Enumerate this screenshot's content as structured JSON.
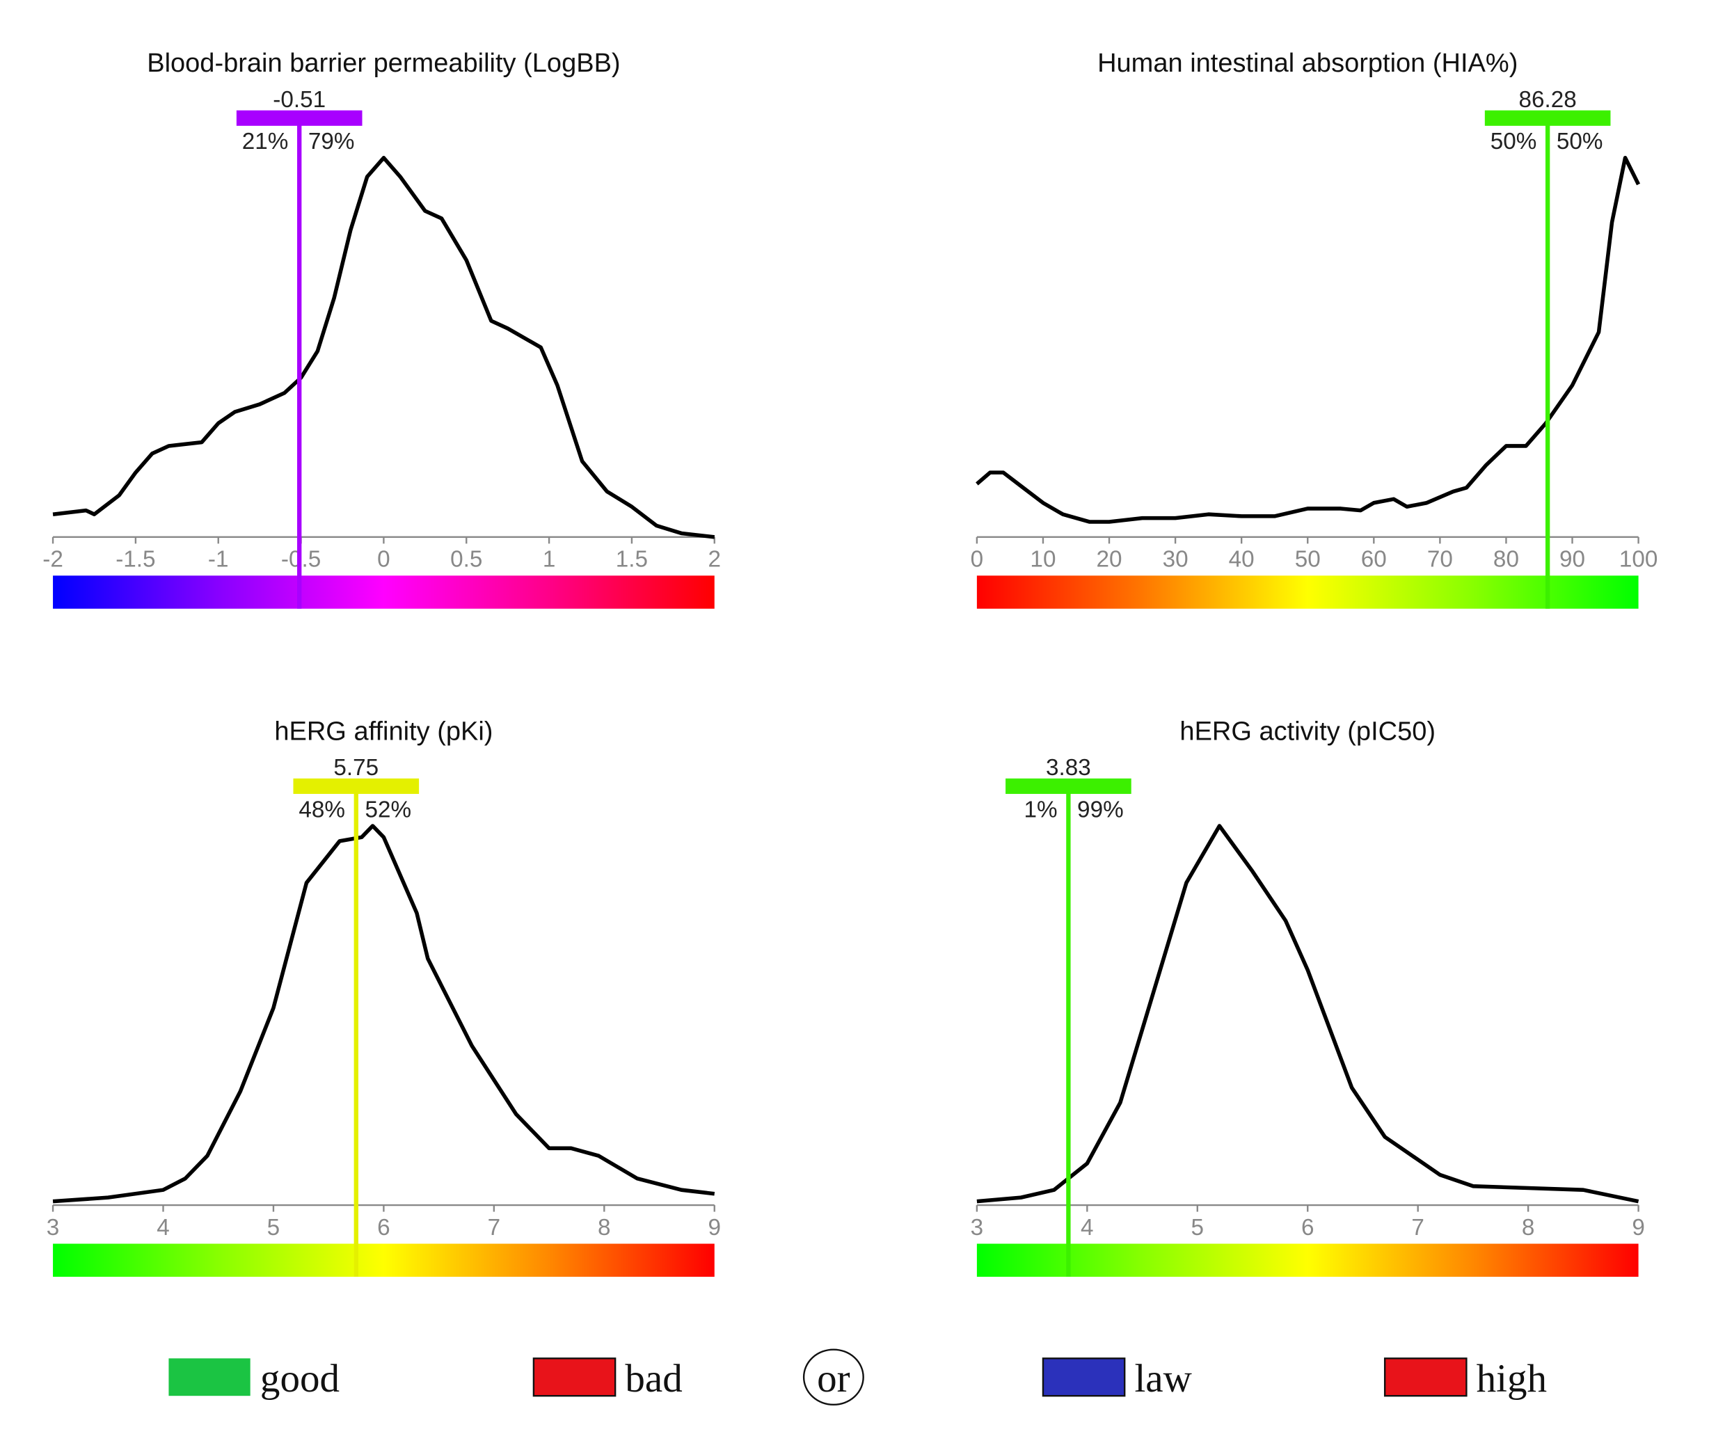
{
  "chart_data": [
    {
      "type": "area",
      "title": "Blood-brain barrier permeability (LogBB)",
      "xlim": [
        -2,
        2
      ],
      "xticks": [
        "-2",
        "-1.5",
        "-1",
        "-0.5",
        "0",
        "0.5",
        "1",
        "1.5",
        "2"
      ],
      "tick_values": [
        -2,
        -1.5,
        -1,
        -0.5,
        0,
        0.5,
        1,
        1.5,
        2
      ],
      "gradient": [
        "#0000ff",
        "#8800ff",
        "#ff00ff",
        "#ff0088",
        "#ff0000"
      ],
      "marker": {
        "value": -0.51,
        "label": "-0.51",
        "left_pct": "21%",
        "right_pct": "79%",
        "color": "#a800ff"
      },
      "density": {
        "x": [
          -2,
          -1.8,
          -1.75,
          -1.6,
          -1.5,
          -1.4,
          -1.3,
          -1.1,
          -1,
          -0.9,
          -0.75,
          -0.6,
          -0.5,
          -0.4,
          -0.3,
          -0.2,
          -0.1,
          0,
          0.1,
          0.25,
          0.35,
          0.5,
          0.65,
          0.75,
          0.95,
          1.05,
          1.2,
          1.35,
          1.5,
          1.65,
          1.8,
          2
        ],
        "y": [
          0.06,
          0.07,
          0.06,
          0.11,
          0.17,
          0.22,
          0.24,
          0.25,
          0.3,
          0.33,
          0.35,
          0.38,
          0.42,
          0.49,
          0.63,
          0.81,
          0.95,
          1,
          0.95,
          0.86,
          0.84,
          0.73,
          0.57,
          0.55,
          0.5,
          0.4,
          0.2,
          0.12,
          0.08,
          0.03,
          0.01,
          0.0
        ]
      }
    },
    {
      "type": "area",
      "title": "Human intestinal absorption (HIA%)",
      "xlim": [
        0,
        100
      ],
      "xticks": [
        "0",
        "10",
        "20",
        "30",
        "40",
        "50",
        "60",
        "70",
        "80",
        "90",
        "100"
      ],
      "tick_values": [
        0,
        10,
        20,
        30,
        40,
        50,
        60,
        70,
        80,
        90,
        100
      ],
      "gradient": [
        "#ff0000",
        "#ff7700",
        "#ffff00",
        "#88ff00",
        "#00ff00"
      ],
      "marker": {
        "value": 86.28,
        "label": "86.28",
        "left_pct": "50%",
        "right_pct": "50%",
        "color": "#3cf000"
      },
      "density": {
        "x": [
          0,
          2,
          4,
          7,
          10,
          13,
          17,
          20,
          25,
          30,
          35,
          40,
          45,
          50,
          55,
          58,
          60,
          63,
          65,
          68,
          72,
          74,
          77,
          80,
          83,
          86,
          90,
          94,
          96,
          98,
          100
        ],
        "y": [
          0.14,
          0.17,
          0.17,
          0.13,
          0.09,
          0.06,
          0.04,
          0.04,
          0.05,
          0.05,
          0.06,
          0.055,
          0.055,
          0.075,
          0.075,
          0.07,
          0.09,
          0.1,
          0.08,
          0.09,
          0.12,
          0.13,
          0.19,
          0.24,
          0.24,
          0.3,
          0.4,
          0.54,
          0.83,
          1,
          0.93
        ]
      }
    },
    {
      "type": "area",
      "title": "hERG affinity (pKi)",
      "xlim": [
        3,
        9
      ],
      "xticks": [
        "3",
        "4",
        "5",
        "6",
        "7",
        "8",
        "9"
      ],
      "tick_values": [
        3,
        4,
        5,
        6,
        7,
        8,
        9
      ],
      "gradient": [
        "#00ff00",
        "#88ff00",
        "#ffff00",
        "#ff8800",
        "#ff0000"
      ],
      "marker": {
        "value": 5.75,
        "label": "5.75",
        "left_pct": "48%",
        "right_pct": "52%",
        "color": "#e4f000"
      },
      "density": {
        "x": [
          3,
          3.5,
          4,
          4.2,
          4.4,
          4.7,
          5,
          5.3,
          5.6,
          5.8,
          5.9,
          6,
          6.3,
          6.4,
          6.8,
          7.2,
          7.5,
          7.7,
          7.95,
          8.3,
          8.7,
          9
        ],
        "y": [
          0.01,
          0.02,
          0.04,
          0.07,
          0.13,
          0.3,
          0.52,
          0.85,
          0.96,
          0.97,
          1,
          0.97,
          0.77,
          0.65,
          0.42,
          0.24,
          0.15,
          0.15,
          0.13,
          0.07,
          0.04,
          0.03
        ]
      }
    },
    {
      "type": "area",
      "title": "hERG activity (pIC50)",
      "xlim": [
        3,
        9
      ],
      "xticks": [
        "3",
        "4",
        "5",
        "6",
        "7",
        "8",
        "9"
      ],
      "tick_values": [
        3,
        4,
        5,
        6,
        7,
        8,
        9
      ],
      "gradient": [
        "#00ff00",
        "#88ff00",
        "#ffff00",
        "#ff8800",
        "#ff0000"
      ],
      "marker": {
        "value": 3.83,
        "label": "3.83",
        "left_pct": "1%",
        "right_pct": "99%",
        "color": "#3cf000"
      },
      "density": {
        "x": [
          3,
          3.4,
          3.7,
          4,
          4.3,
          4.6,
          4.9,
          5.2,
          5.5,
          5.8,
          6,
          6.4,
          6.7,
          7.2,
          7.5,
          8,
          8.5,
          9
        ],
        "y": [
          0.01,
          0.02,
          0.04,
          0.11,
          0.27,
          0.56,
          0.85,
          1,
          0.88,
          0.75,
          0.62,
          0.31,
          0.18,
          0.08,
          0.05,
          0.045,
          0.04,
          0.01
        ]
      }
    }
  ],
  "legend": {
    "items": [
      {
        "label": "good",
        "color": "#1bc443"
      },
      {
        "label": "bad",
        "color": "#e8131a"
      },
      {
        "label": "law",
        "color": "#2b31bb"
      },
      {
        "label": "high",
        "color": "#e8131a"
      }
    ],
    "separator": "or"
  }
}
